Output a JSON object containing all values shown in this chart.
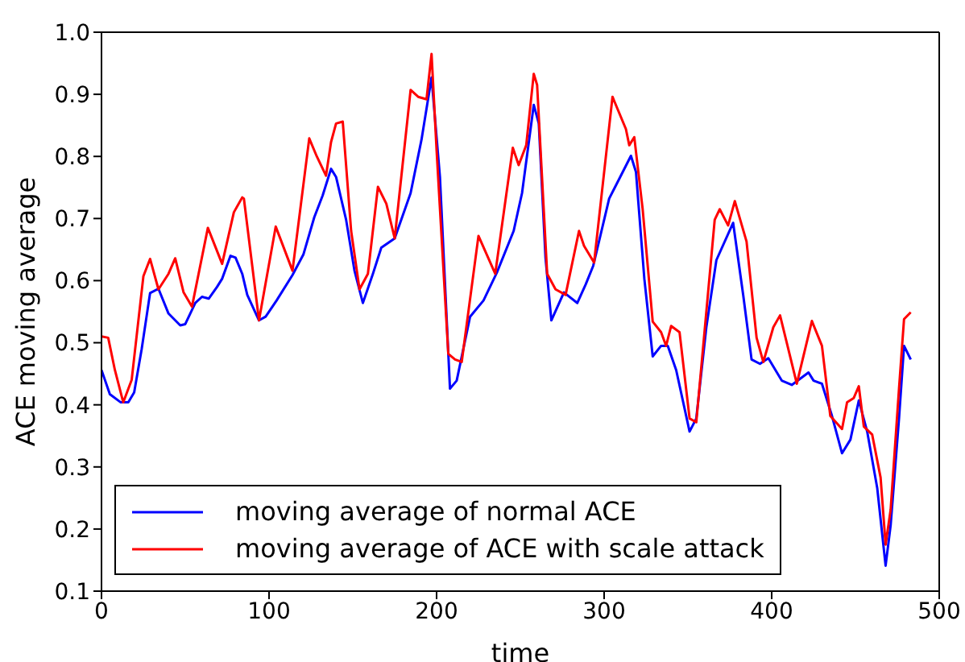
{
  "chart_data": {
    "type": "line",
    "xlabel": "time",
    "ylabel": "ACE moving average",
    "xlim": [
      0,
      500
    ],
    "ylim": [
      0.1,
      1.0
    ],
    "xticks": [
      0,
      100,
      200,
      300,
      400,
      500
    ],
    "yticks": [
      0.1,
      0.2,
      0.3,
      0.4,
      0.5,
      0.6,
      0.7,
      0.8,
      0.9,
      {
        "value": 1,
        "label": "1.0"
      }
    ],
    "grid": false,
    "legend": "bottom left",
    "marker": "none",
    "line_style": "solid",
    "series": [
      {
        "name": "moving average of normal ACE",
        "color": "#0000ff",
        "x": [
          0,
          5,
          11.5,
          16,
          19.5,
          24,
          29,
          34,
          40,
          47,
          50,
          56,
          60,
          64,
          69,
          72,
          77,
          80,
          84,
          87,
          94,
          98,
          104.5,
          114,
          120.5,
          127,
          132,
          137,
          140,
          146,
          151,
          156,
          162,
          167,
          175,
          184.5,
          191,
          197,
          202,
          208,
          212,
          220,
          228,
          236,
          246,
          251,
          258,
          261,
          265,
          268.5,
          276,
          284,
          289,
          293.5,
          303,
          316,
          319,
          324,
          329,
          334,
          338,
          343,
          351,
          355,
          361,
          367,
          377,
          383,
          388,
          393,
          398,
          406,
          412,
          422,
          425,
          430,
          436,
          442,
          447,
          452,
          457,
          463,
          468,
          471,
          476,
          479,
          483
        ],
        "values": [
          0.456,
          0.417,
          0.404,
          0.404,
          0.42,
          0.49,
          0.58,
          0.587,
          0.547,
          0.528,
          0.53,
          0.564,
          0.574,
          0.571,
          0.59,
          0.603,
          0.64,
          0.637,
          0.611,
          0.577,
          0.536,
          0.542,
          0.568,
          0.609,
          0.642,
          0.702,
          0.737,
          0.78,
          0.767,
          0.698,
          0.616,
          0.564,
          0.611,
          0.653,
          0.668,
          0.741,
          0.827,
          0.927,
          0.767,
          0.426,
          0.439,
          0.542,
          0.568,
          0.613,
          0.68,
          0.741,
          0.883,
          0.853,
          0.637,
          0.536,
          0.581,
          0.564,
          0.594,
          0.624,
          0.732,
          0.801,
          0.775,
          0.603,
          0.478,
          0.495,
          0.495,
          0.456,
          0.357,
          0.378,
          0.525,
          0.633,
          0.693,
          0.577,
          0.473,
          0.466,
          0.475,
          0.439,
          0.432,
          0.452,
          0.439,
          0.434,
          0.382,
          0.322,
          0.344,
          0.407,
          0.357,
          0.266,
          0.141,
          0.206,
          0.378,
          0.495,
          0.473
        ]
      },
      {
        "name": "moving average of ACE with scale attack",
        "color": "#ff0000",
        "x": [
          0,
          4,
          8,
          13,
          18,
          25,
          29,
          34,
          40,
          44,
          49,
          54,
          63.5,
          72,
          79,
          84,
          85,
          94,
          104,
          114,
          124,
          128.5,
          134,
          137,
          140,
          144,
          149,
          154,
          159,
          165,
          170,
          175,
          184.5,
          189,
          194,
          197,
          200,
          207,
          211,
          215,
          225,
          235,
          245.5,
          249,
          253.5,
          258,
          260,
          266,
          271,
          277,
          285,
          288,
          294,
          305,
          313,
          315,
          318,
          323,
          329,
          334,
          337,
          340,
          345,
          351,
          355,
          366,
          369,
          374,
          378,
          385,
          391,
          395,
          401,
          405,
          415,
          424,
          430,
          435,
          442,
          445,
          449,
          452,
          455,
          460,
          465,
          468,
          471,
          476,
          479,
          483
        ],
        "values": [
          0.51,
          0.508,
          0.456,
          0.404,
          0.44,
          0.607,
          0.635,
          0.586,
          0.611,
          0.636,
          0.581,
          0.558,
          0.685,
          0.627,
          0.71,
          0.734,
          0.732,
          0.536,
          0.687,
          0.616,
          0.829,
          0.8,
          0.769,
          0.823,
          0.853,
          0.856,
          0.68,
          0.586,
          0.611,
          0.751,
          0.724,
          0.668,
          0.907,
          0.896,
          0.892,
          0.965,
          0.81,
          0.482,
          0.473,
          0.469,
          0.672,
          0.611,
          0.814,
          0.786,
          0.818,
          0.933,
          0.915,
          0.611,
          0.586,
          0.577,
          0.68,
          0.656,
          0.629,
          0.896,
          0.844,
          0.818,
          0.831,
          0.715,
          0.534,
          0.517,
          0.495,
          0.527,
          0.517,
          0.378,
          0.372,
          0.698,
          0.715,
          0.689,
          0.728,
          0.663,
          0.508,
          0.469,
          0.525,
          0.544,
          0.434,
          0.535,
          0.495,
          0.382,
          0.361,
          0.404,
          0.411,
          0.43,
          0.365,
          0.352,
          0.283,
          0.175,
          0.231,
          0.426,
          0.538,
          0.549
        ]
      }
    ]
  }
}
